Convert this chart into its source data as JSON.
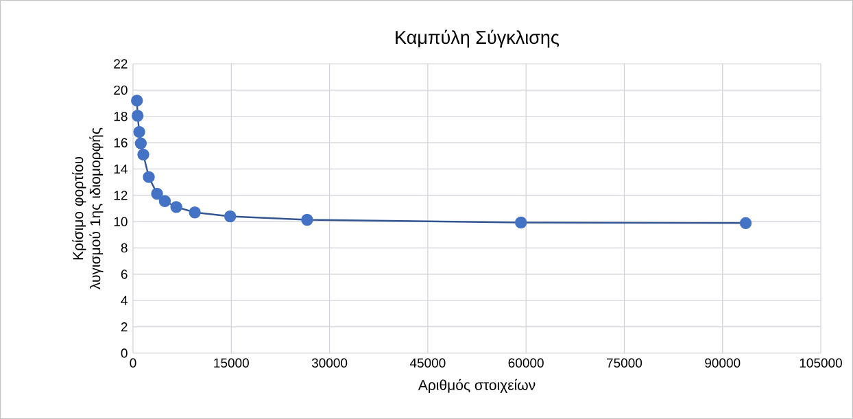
{
  "chart_data": {
    "type": "line",
    "title": "Καμπύλη Σύγκλισης",
    "xlabel": "Αριθμός στοιχείων",
    "ylabel": "Κρίσιμο φορτίου λυγισμού  1ης ιδιομορφής",
    "x": [
      600,
      700,
      950,
      1190,
      1570,
      2410,
      3670,
      4860,
      6610,
      9440,
      14830,
      26580,
      59220,
      93540
    ],
    "series": [
      {
        "color": "#4472c4",
        "values": [
          19.2,
          18.05,
          16.82,
          15.95,
          15.1,
          13.39,
          12.12,
          11.56,
          11.11,
          10.7,
          10.4,
          10.14,
          9.93,
          9.89
        ]
      }
    ],
    "xlim": [
      0,
      105000
    ],
    "xticks": [
      0,
      15000,
      30000,
      45000,
      60000,
      75000,
      90000,
      105000
    ],
    "ylim": [
      0,
      22
    ],
    "yticks": [
      0,
      2,
      4,
      6,
      8,
      10,
      12,
      14,
      16,
      18,
      20,
      22
    ],
    "grid": true,
    "marker": "circle"
  }
}
